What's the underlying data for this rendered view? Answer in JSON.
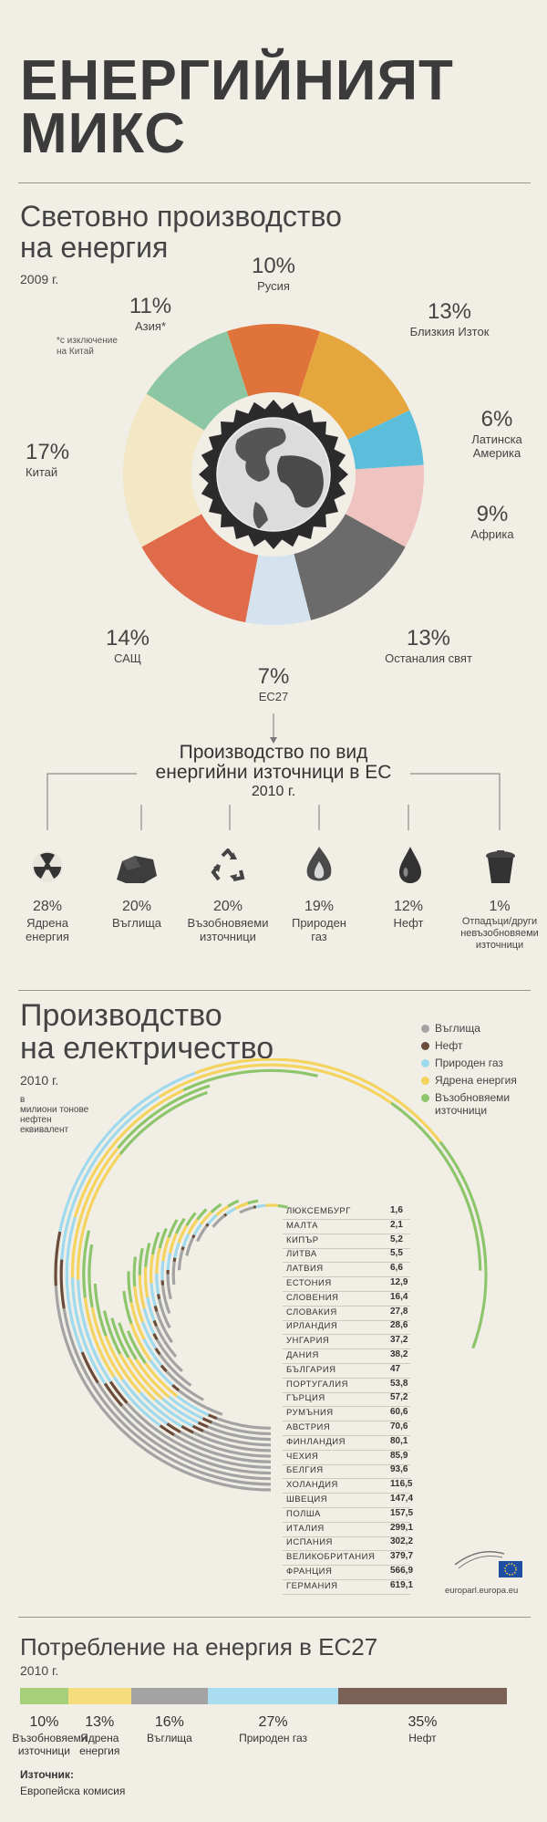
{
  "title_line1": "ЕНЕРГИЙНИЯТ",
  "title_line2": "МИКС",
  "world": {
    "title_line1": "Световно производство",
    "title_line2": "на енергия",
    "year": "2009 г.",
    "asia_note_line1": "*с изключение",
    "asia_note_line2": "на Китай",
    "segments": [
      {
        "pct": "10%",
        "label": "Русия",
        "color": "#e0733a"
      },
      {
        "pct": "13%",
        "label": "Близкия Изток",
        "color": "#e6a63e"
      },
      {
        "pct": "6%",
        "label_line1": "Латинска",
        "label_line2": "Америка",
        "color": "#5dbedc"
      },
      {
        "pct": "9%",
        "label": "Африка",
        "color": "#efc3c0"
      },
      {
        "pct": "13%",
        "label": "Останалия свят",
        "color": "#6b6b6b"
      },
      {
        "pct": "7%",
        "label": "ЕС27",
        "color": "#d5e3ee"
      },
      {
        "pct": "14%",
        "label": "САЩ",
        "color": "#e06b4a"
      },
      {
        "pct": "17%",
        "label": "Китай",
        "color": "#f3e7c5"
      },
      {
        "pct": "11%",
        "label": "Азия*",
        "color": "#8cc6a2"
      }
    ]
  },
  "eu_prod": {
    "title_line1": "Производство по вид",
    "title_line2": "енергийни източници в ЕС",
    "year": "2010 г.",
    "items": [
      {
        "pct": "28%",
        "label_line1": "Ядрена",
        "label_line2": "енергия",
        "label_line3": "",
        "icon": "radiation-icon"
      },
      {
        "pct": "20%",
        "label_line1": "Въглища",
        "label_line2": "",
        "label_line3": "",
        "icon": "coal-icon"
      },
      {
        "pct": "20%",
        "label_line1": "Възобновяеми",
        "label_line2": "източници",
        "label_line3": "",
        "icon": "recycle-icon"
      },
      {
        "pct": "19%",
        "label_line1": "Природен",
        "label_line2": "газ",
        "label_line3": "",
        "icon": "gas-flame-icon"
      },
      {
        "pct": "12%",
        "label_line1": "Нефт",
        "label_line2": "",
        "label_line3": "",
        "icon": "oil-drop-icon"
      },
      {
        "pct": "1%",
        "label_line1": "Отпадъци/други",
        "label_line2": "невъзобновяеми",
        "label_line3": "източници",
        "icon": "waste-bin-icon"
      }
    ]
  },
  "electricity": {
    "title_line1": "Производство",
    "title_line2": "на електричество",
    "year": "2010 г.",
    "unit_line1": "в",
    "unit_line2": "милиони тонове",
    "unit_line3": "нефтен",
    "unit_line4": "еквивалент",
    "legend": [
      {
        "label": "Въглища",
        "color": "#a3a3a3"
      },
      {
        "label": "Нефт",
        "color": "#6b4c3b"
      },
      {
        "label": "Природен газ",
        "color": "#9fd9ee"
      },
      {
        "label": "Ядрена енергия",
        "color": "#f4d35e"
      },
      {
        "label": "Възобновяеми",
        "label2": "източници",
        "color": "#8cc56a"
      }
    ],
    "countries": [
      {
        "name": "ЛЮКСЕМБУРГ",
        "value": "1,6"
      },
      {
        "name": "МАЛТА",
        "value": "2,1"
      },
      {
        "name": "КИПЪР",
        "value": "5,2"
      },
      {
        "name": "ЛИТВА",
        "value": "5,5"
      },
      {
        "name": "ЛАТВИЯ",
        "value": "6,6"
      },
      {
        "name": "ЕСТОНИЯ",
        "value": "12,9"
      },
      {
        "name": "СЛОВЕНИЯ",
        "value": "16,4"
      },
      {
        "name": "СЛОВАКИЯ",
        "value": "27,8"
      },
      {
        "name": "ИРЛАНДИЯ",
        "value": "28,6"
      },
      {
        "name": "УНГАРИЯ",
        "value": "37,2"
      },
      {
        "name": "ДАНИЯ",
        "value": "38,2"
      },
      {
        "name": "БЪЛГАРИЯ",
        "value": "47"
      },
      {
        "name": "ПОРТУГАЛИЯ",
        "value": "53,8"
      },
      {
        "name": "ГЪРЦИЯ",
        "value": "57,2"
      },
      {
        "name": "РУМЪНИЯ",
        "value": "60,6"
      },
      {
        "name": "АВСТРИЯ",
        "value": "70,6"
      },
      {
        "name": "ФИНЛАНДИЯ",
        "value": "80,1"
      },
      {
        "name": "ЧЕХИЯ",
        "value": "85,9"
      },
      {
        "name": "БЕЛГИЯ",
        "value": "93,6"
      },
      {
        "name": "ХОЛАНДИЯ",
        "value": "116,5"
      },
      {
        "name": "ШВЕЦИЯ",
        "value": "147,4"
      },
      {
        "name": "ПОЛША",
        "value": "157,5"
      },
      {
        "name": "ИТАЛИЯ",
        "value": "299,1"
      },
      {
        "name": "ИСПАНИЯ",
        "value": "302,2"
      },
      {
        "name": "ВЕЛИКОБРИТАНИЯ",
        "value": "379,7"
      },
      {
        "name": "ФРАНЦИЯ",
        "value": "566,9"
      },
      {
        "name": "ГЕРМАНИЯ",
        "value": "619,1"
      }
    ],
    "logo_text": "europarl.europa.eu"
  },
  "consumption": {
    "title": "Потребление на енергия в ЕС27",
    "year": "2010 г.",
    "segments": [
      {
        "pct": "10%",
        "label_line1": "Възобновяеми",
        "label_line2": "източници",
        "value": 10,
        "color": "#a6cf7c"
      },
      {
        "pct": "13%",
        "label_line1": "Ядрена",
        "label_line2": "енергия",
        "value": 13,
        "color": "#f5dc7c"
      },
      {
        "pct": "16%",
        "label_line1": "Въглища",
        "label_line2": "",
        "value": 16,
        "color": "#a3a3a3"
      },
      {
        "pct": "27%",
        "label_line1": "Природен газ",
        "label_line2": "",
        "value": 27,
        "color": "#a9dcef"
      },
      {
        "pct": "35%",
        "label_line1": "Нефт",
        "label_line2": "",
        "value": 35,
        "color": "#7a6055"
      }
    ]
  },
  "source_label": "Източник:",
  "source_value": "Европейска комисия",
  "chart_data": [
    {
      "type": "pie",
      "title": "Световно производство на енергия",
      "categories": [
        "Русия",
        "Близкия Изток",
        "Латинска Америка",
        "Африка",
        "Останалия свят",
        "ЕС27",
        "САЩ",
        "Китай",
        "Азия*"
      ],
      "values": [
        10,
        13,
        6,
        9,
        13,
        7,
        14,
        17,
        11
      ]
    },
    {
      "type": "bar",
      "title": "Производство по вид енергийни източници в ЕС",
      "categories": [
        "Ядрена енергия",
        "Въглища",
        "Възобновяеми източници",
        "Природен газ",
        "Нефт",
        "Отпадъци/други невъзобновяеми източници"
      ],
      "values": [
        28,
        20,
        20,
        19,
        12,
        1
      ]
    },
    {
      "type": "bar",
      "title": "Производство на електричество",
      "categories": [
        "ЛЮКСЕМБУРГ",
        "МАЛТА",
        "КИПЪР",
        "ЛИТВА",
        "ЛАТВИЯ",
        "ЕСТОНИЯ",
        "СЛОВЕНИЯ",
        "СЛОВАКИЯ",
        "ИРЛАНДИЯ",
        "УНГАРИЯ",
        "ДАНИЯ",
        "БЪЛГАРИЯ",
        "ПОРТУГАЛИЯ",
        "ГЪРЦИЯ",
        "РУМЪНИЯ",
        "АВСТРИЯ",
        "ФИНЛАНДИЯ",
        "ЧЕХИЯ",
        "БЕЛГИЯ",
        "ХОЛАНДИЯ",
        "ШВЕЦИЯ",
        "ПОЛША",
        "ИТАЛИЯ",
        "ИСПАНИЯ",
        "ВЕЛИКОБРИТАНИЯ",
        "ФРАНЦИЯ",
        "ГЕРМАНИЯ"
      ],
      "values": [
        1.6,
        2.1,
        5.2,
        5.5,
        6.6,
        12.9,
        16.4,
        27.8,
        28.6,
        37.2,
        38.2,
        47,
        53.8,
        57.2,
        60.6,
        70.6,
        80.1,
        85.9,
        93.6,
        116.5,
        147.4,
        157.5,
        299.1,
        302.2,
        379.7,
        566.9,
        619.1
      ]
    },
    {
      "type": "bar",
      "title": "Потребление на енергия в ЕС27",
      "categories": [
        "Възобновяеми източници",
        "Ядрена енергия",
        "Въглища",
        "Природен газ",
        "Нефт"
      ],
      "values": [
        10,
        13,
        16,
        27,
        35
      ]
    }
  ]
}
